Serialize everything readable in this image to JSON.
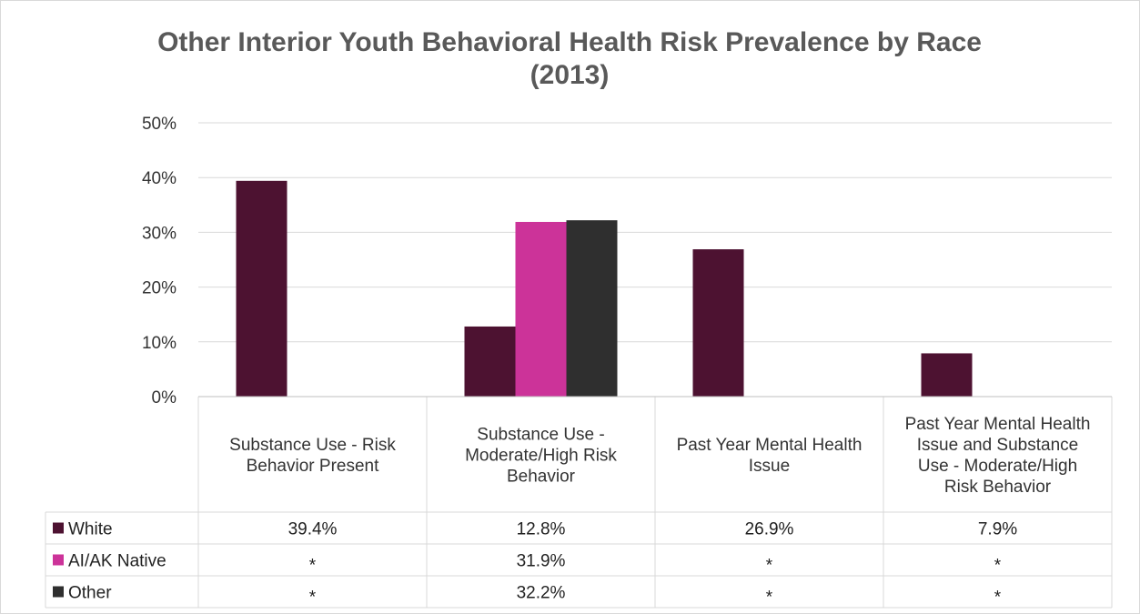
{
  "chart_data": {
    "type": "bar",
    "title": [
      "Other Interior Youth Behavioral Health Risk Prevalence by Race",
      "(2013)"
    ],
    "categories": [
      [
        "Substance Use - Risk",
        "Behavior Present"
      ],
      [
        "Substance Use -",
        "Moderate/High Risk",
        "Behavior"
      ],
      [
        "Past Year Mental Health",
        "Issue"
      ],
      [
        "Past Year Mental Health",
        "Issue and Substance",
        "Use - Moderate/High",
        "Risk Behavior"
      ]
    ],
    "ylim": [
      0,
      50
    ],
    "yticks": [
      "0%",
      "10%",
      "20%",
      "30%",
      "40%",
      "50%"
    ],
    "grid": true,
    "legend": "data-table",
    "series": [
      {
        "name": "White",
        "color": "#4d1231",
        "values": [
          39.4,
          12.8,
          26.9,
          7.9
        ],
        "labels": [
          "39.4%",
          "12.8%",
          "26.9%",
          "7.9%"
        ]
      },
      {
        "name": "AI/AK Native",
        "color": "#cc3399",
        "values": [
          null,
          31.9,
          null,
          null
        ],
        "labels": [
          "*",
          "31.9%",
          "*",
          "*"
        ]
      },
      {
        "name": "Other",
        "color": "#2f2f2f",
        "values": [
          null,
          32.2,
          null,
          null
        ],
        "labels": [
          "*",
          "32.2%",
          "*",
          "*"
        ]
      }
    ]
  }
}
